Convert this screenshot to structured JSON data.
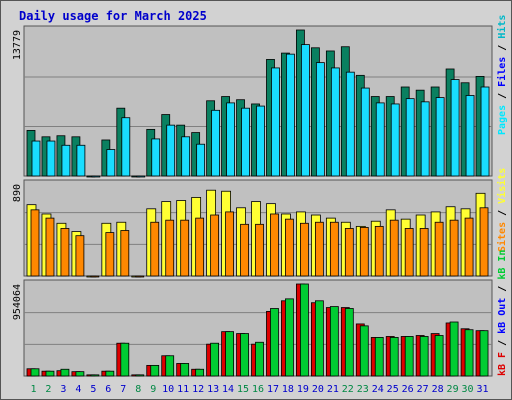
{
  "title": "Daily usage for March 2025",
  "colors": {
    "hits": "#00b8c8",
    "files": "#0000ff",
    "pages": "#00e8ff",
    "hits_bar": "#0a8060",
    "pages_bar": "#19ddff",
    "visits": "#ffff33",
    "sites": "#ff8800",
    "kbin": "#00cc33",
    "kbout": "#dd0000",
    "weekend": "#008844",
    "weekday": "#0000cc",
    "panel": "#c0c0c0"
  },
  "right_labels": {
    "top": [
      "Hits",
      "Files",
      "Pages"
    ],
    "mid": [
      "Visits",
      "Sites"
    ],
    "bot": [
      "kB In",
      "kB Out",
      "kB F"
    ]
  },
  "chart_data": [
    {
      "type": "bar",
      "name": "hits-files-pages",
      "ymax_label": "13779",
      "ymax": 13779,
      "categories": [
        "1",
        "2",
        "3",
        "4",
        "5",
        "6",
        "7",
        "8",
        "9",
        "10",
        "11",
        "12",
        "13",
        "14",
        "15",
        "16",
        "17",
        "18",
        "19",
        "20",
        "21",
        "22",
        "23",
        "24",
        "25",
        "26",
        "27",
        "28",
        "29",
        "30",
        "31"
      ],
      "series": [
        {
          "name": "Hits",
          "values": [
            4300,
            3700,
            3800,
            3700,
            0,
            3400,
            6400,
            0,
            4400,
            5800,
            4800,
            4100,
            7100,
            7500,
            7200,
            6800,
            11000,
            11600,
            13779,
            12100,
            11800,
            12200,
            9500,
            7500,
            7500,
            8400,
            8100,
            8400,
            10100,
            8800,
            9400
          ]
        },
        {
          "name": "Pages",
          "values": [
            3300,
            3300,
            2900,
            2900,
            0,
            2500,
            5500,
            0,
            3500,
            4800,
            3700,
            3000,
            6200,
            6900,
            6400,
            6600,
            10200,
            11500,
            12400,
            10700,
            10200,
            9800,
            8300,
            6900,
            6800,
            7300,
            7000,
            7400,
            9100,
            7600,
            8400
          ]
        }
      ]
    },
    {
      "type": "bar",
      "name": "visits-sites",
      "ymax_label": "890",
      "ymax": 890,
      "categories": [
        "1",
        "2",
        "3",
        "4",
        "5",
        "6",
        "7",
        "8",
        "9",
        "10",
        "11",
        "12",
        "13",
        "14",
        "15",
        "16",
        "17",
        "18",
        "19",
        "20",
        "21",
        "22",
        "23",
        "24",
        "25",
        "26",
        "27",
        "28",
        "29",
        "30",
        "31"
      ],
      "series": [
        {
          "name": "Visits",
          "values": [
            690,
            600,
            510,
            430,
            0,
            510,
            520,
            0,
            650,
            720,
            730,
            760,
            830,
            820,
            660,
            720,
            700,
            600,
            620,
            590,
            560,
            520,
            480,
            530,
            640,
            550,
            590,
            620,
            670,
            650,
            800
          ]
        },
        {
          "name": "Sites",
          "values": [
            640,
            560,
            460,
            390,
            0,
            420,
            440,
            0,
            520,
            540,
            540,
            560,
            590,
            620,
            500,
            500,
            600,
            550,
            510,
            520,
            520,
            460,
            470,
            480,
            540,
            460,
            460,
            520,
            540,
            560,
            660
          ]
        }
      ]
    },
    {
      "type": "bar",
      "name": "kb-in-out",
      "ymax_label": "954064",
      "ymax": 954064,
      "categories": [
        "1",
        "2",
        "3",
        "4",
        "5",
        "6",
        "7",
        "8",
        "9",
        "10",
        "11",
        "12",
        "13",
        "14",
        "15",
        "16",
        "17",
        "18",
        "19",
        "20",
        "21",
        "22",
        "23",
        "24",
        "25",
        "26",
        "27",
        "28",
        "29",
        "30",
        "31"
      ],
      "series": [
        {
          "name": "kB Out",
          "values": [
            75000,
            50000,
            55000,
            45000,
            12000,
            50000,
            340000,
            12000,
            110000,
            210000,
            130000,
            70000,
            330000,
            460000,
            440000,
            330000,
            670000,
            780000,
            954000,
            760000,
            710000,
            710000,
            540000,
            400000,
            410000,
            410000,
            420000,
            440000,
            550000,
            490000,
            470000
          ]
        },
        {
          "name": "kB In",
          "values": [
            75000,
            50000,
            70000,
            45000,
            12000,
            50000,
            340000,
            12000,
            110000,
            210000,
            130000,
            70000,
            340000,
            460000,
            440000,
            350000,
            700000,
            800000,
            954064,
            780000,
            720000,
            700000,
            520000,
            400000,
            400000,
            410000,
            410000,
            420000,
            560000,
            480000,
            470000
          ]
        }
      ]
    }
  ],
  "x_axis": {
    "labels": [
      "1",
      "2",
      "3",
      "4",
      "5",
      "6",
      "7",
      "8",
      "9",
      "10",
      "11",
      "12",
      "13",
      "14",
      "15",
      "16",
      "17",
      "18",
      "19",
      "20",
      "21",
      "22",
      "23",
      "24",
      "25",
      "26",
      "27",
      "28",
      "29",
      "30",
      "31"
    ],
    "weekend_days": [
      "1",
      "2",
      "8",
      "9",
      "15",
      "16",
      "22",
      "23",
      "29",
      "30"
    ]
  }
}
